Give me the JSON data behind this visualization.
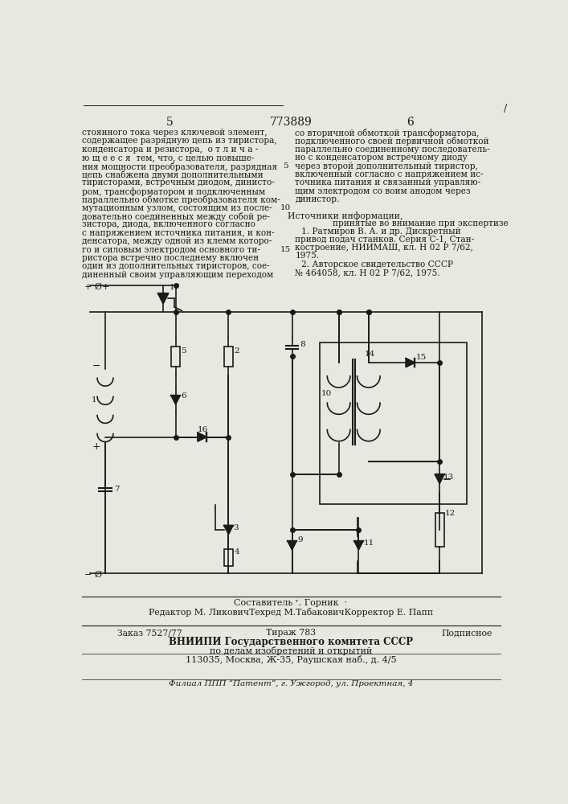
{
  "bg_color": "#e8e8e0",
  "text_color": "#1a1a1a",
  "page_num_left": "5",
  "page_num_center": "773889",
  "page_num_right": "6",
  "slash_mark": "/",
  "left_col_lines": [
    "стоянного тока через ключевой элемент,",
    "содержащее разрядную цепь из тиристора,",
    "конденсатора и резистора,  о т л и ч а -",
    "ю щ е е с я  тем, что, с целью повыше-",
    "ния мощности преобразователя, разрядная",
    "цепь снабжена двумя дополнительными",
    "тиристорами, встречным диодом, динисто-",
    "ром, трансформатором и подключенным",
    "параллельно обмотке преобразователя ком-",
    "мутационным узлом, состоящим из после-",
    "довательно соединенных между собой ре-",
    "зистора, диода, включенного согласно",
    "с напряжением источника питания, и кон-",
    "денсатора, между одной из клемм которо-",
    "го и силовым электродом основного ти-",
    "ристора встречно последнему включен",
    "один из дополнительных тиристоров, сое-",
    "диненный своим управляющим переходом"
  ],
  "right_col_lines": [
    "со вторичной обмоткой трансформатора,",
    "подключенного своей первичной обмоткой",
    "параллельно соединенному последователь-",
    "но с конденсатором встречному диоду",
    "через второй дополнительный тиристор,",
    "включенный согласно с напряжением ис-",
    "точника питания и связанный управляю-",
    "щим электродом со воим анодом через",
    "динистор."
  ],
  "line_num_5_row": 4,
  "line_num_10_row": 9,
  "line_num_15_row": 14,
  "sources_header": "Источники информации,",
  "sources_sub": "принятые во внимание при экспертизе",
  "src1a": "1. Ратмиров В. А. и др. Дискретный",
  "src1b": "привод подач станков. Серия С-1, Стан-",
  "src1c": "костроение, НИИМАШ, кл. Н 02 Р 7/62,",
  "src1d": "1975.",
  "src2a": "2. Авторское свидетельство СССР",
  "src2b": "№ 464058, кл. Н 02 Р 7/62, 1975.",
  "footer1": "Составитель ʳ. Горник  ·",
  "footer2": "Редактор М. ЛиковичТехред М.ТабаковичКорректор Е. Папп",
  "footer3a": "Заказ 7527/77",
  "footer3b": "Тираж 783",
  "footer3c": "Подписное",
  "footer4": "ВНИИПИ Государственного комитета СССР",
  "footer5": "по делам изобретений и открытий",
  "footer6": "113035, Москва, Ж-35, Раушская наб., д. 4/5",
  "footer7": "Филиал ППП “Патент”, г. Ужгород, ул. Проектная, 4"
}
